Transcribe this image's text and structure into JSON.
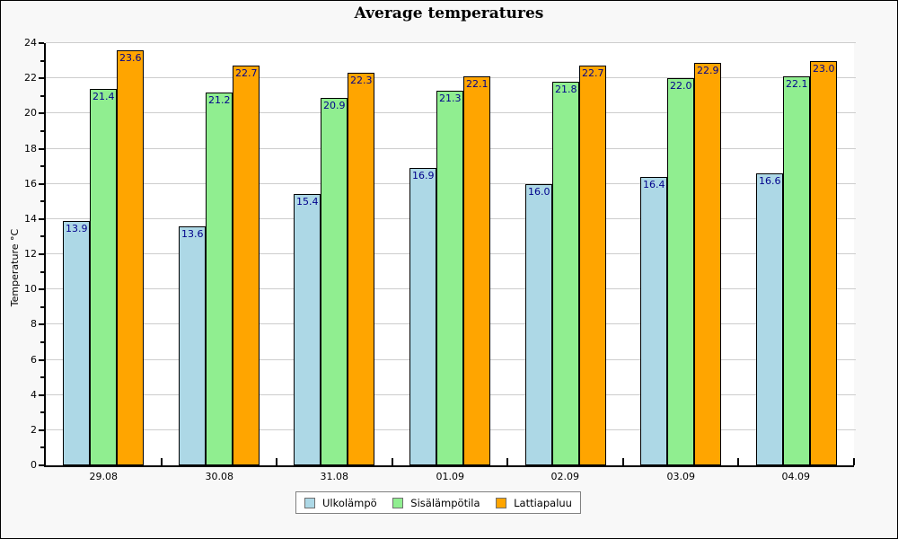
{
  "window": {
    "bg": "#f8f8f8",
    "border_color": "#000000"
  },
  "chart_data": {
    "type": "bar",
    "title": "Average temperatures",
    "ylabel": "Temperature °C",
    "xlabel": "",
    "categories": [
      "29.08",
      "30.08",
      "31.08",
      "01.09",
      "02.09",
      "03.09",
      "04.09"
    ],
    "series": [
      {
        "name": "Ulkolämpö",
        "color": "#add8e6",
        "values": [
          13.9,
          13.6,
          15.4,
          16.9,
          16.0,
          16.4,
          16.6
        ]
      },
      {
        "name": "Sisälämpötila",
        "color": "#90ee90",
        "values": [
          21.4,
          21.2,
          20.9,
          21.3,
          21.8,
          22.0,
          22.1
        ]
      },
      {
        "name": "Lattiapaluu",
        "color": "#ffa500",
        "values": [
          23.6,
          22.7,
          22.3,
          22.1,
          22.7,
          22.9,
          23.0
        ]
      }
    ],
    "ylim": [
      0,
      24
    ],
    "y_major_step": 2,
    "y_minor_step": 1,
    "grid": "on",
    "legend_position": "bottom-center",
    "value_label_decimals": 1,
    "colors": {
      "plot_bg": "#ffffff",
      "grid": "#cdcdcd",
      "axis": "#000000",
      "bar_border": "#000000",
      "value_label": "#00008b",
      "tick_label": "#000000",
      "legend_bg": "#ffffff",
      "legend_border": "#808080"
    }
  }
}
